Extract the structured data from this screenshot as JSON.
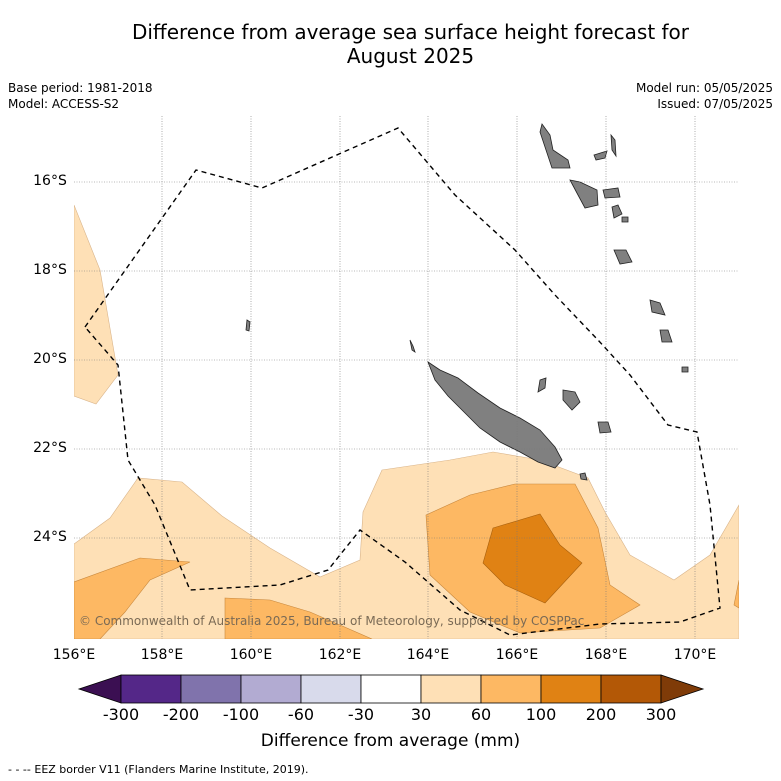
{
  "title": "Difference from average sea surface height forecast for",
  "title_line2": "August 2025",
  "meta_left": {
    "base_period": "Base period: 1981-2018",
    "model": "Model: ACCESS-S2"
  },
  "meta_right": {
    "model_run": "Model run: 05/05/2025",
    "issued": "Issued: 07/05/2025"
  },
  "lon_labels": [
    "156°E",
    "158°E",
    "160°E",
    "162°E",
    "164°E",
    "166°E",
    "168°E",
    "170°E"
  ],
  "lat_labels": [
    "16°S",
    "18°S",
    "20°S",
    "22°S",
    "24°S"
  ],
  "copyright": "© Commonwealth of Australia 2025, Bureau of Meteorology, supported by COSPPac",
  "colorbar": {
    "ticks": [
      "-300",
      "-200",
      "-100",
      "-60",
      "-30",
      "30",
      "60",
      "100",
      "200",
      "300"
    ],
    "colors": [
      "#3b0f52",
      "#542788",
      "#8073ac",
      "#b2abd2",
      "#d8daeb",
      "#ffffff",
      "#fee0b6",
      "#fdb863",
      "#e08214",
      "#b35806",
      "#7f3b08"
    ],
    "label": "Difference from average (mm)"
  },
  "footer": "- - -- EEZ border V11 (Flanders Marine Institute, 2019)."
}
